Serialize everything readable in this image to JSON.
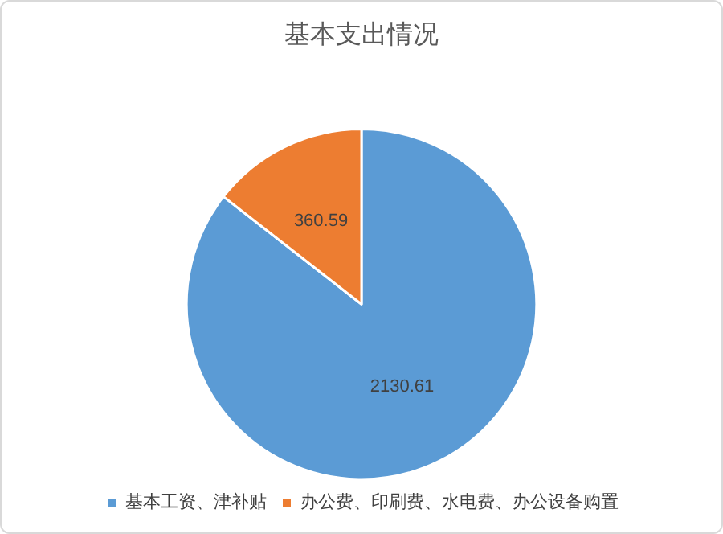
{
  "chart_data": {
    "type": "pie",
    "title": "基本支出情况",
    "categories": [
      "基本工资、津补贴",
      "办公费、印刷费、水电费、办公设备购置"
    ],
    "values": [
      2130.61,
      360.59
    ],
    "colors": [
      "#5b9bd5",
      "#ed7d31"
    ],
    "data_labels": true,
    "legend": "bottom"
  }
}
